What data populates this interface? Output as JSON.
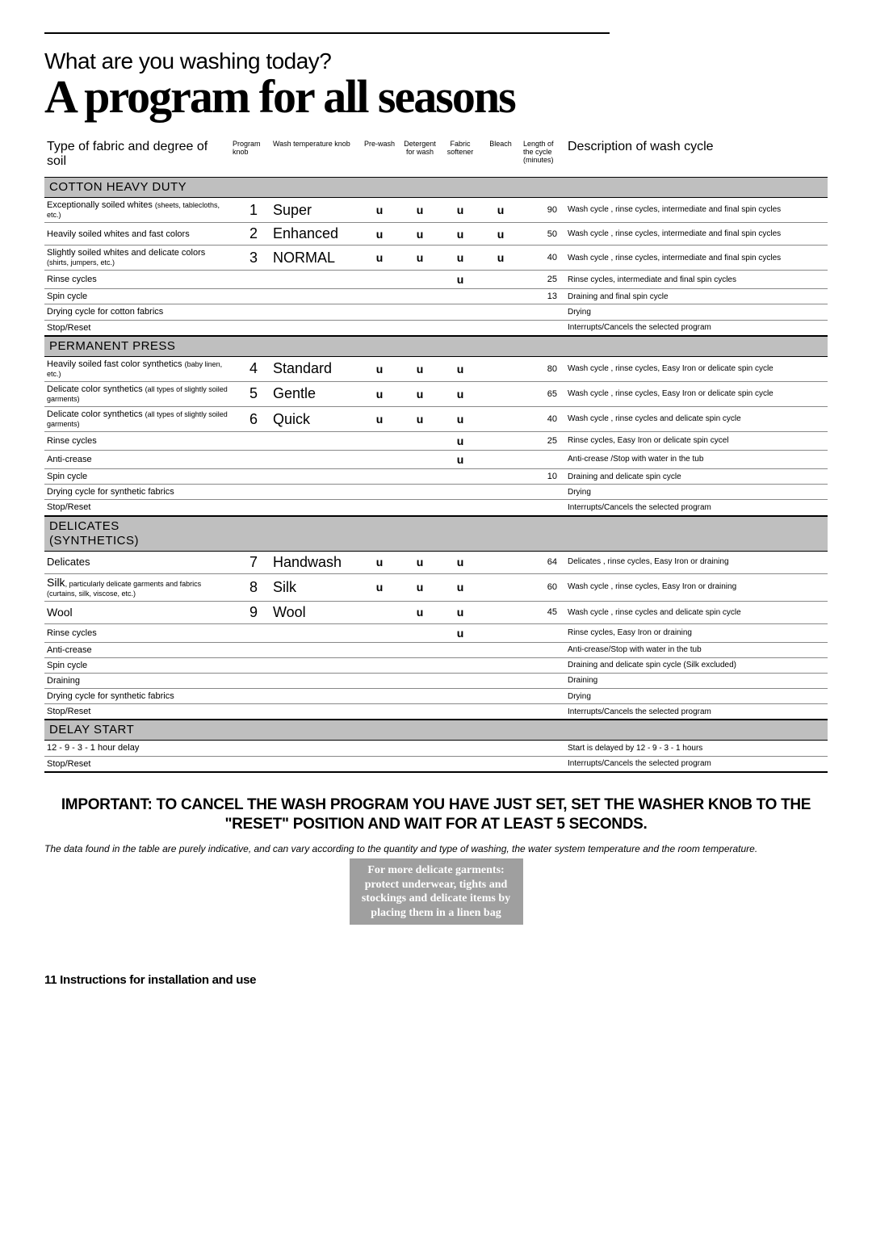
{
  "header": {
    "subtitle": "What are you washing today?",
    "title": "A program for all seasons"
  },
  "table": {
    "columns": {
      "type": "Type of fabric and degree of soil",
      "knob": "Program knob",
      "temp": "Wash temperature knob",
      "prewash": "Pre-wash",
      "detergent": "Detergent for wash",
      "softener": "Fabric softener",
      "bleach": "Bleach",
      "length": "Length of the cycle (minutes)",
      "desc": "Description of wash cycle"
    },
    "tick": "u",
    "sections": [
      {
        "label": "COTTON HEAVY DUTY",
        "rows": [
          {
            "type": "Exceptionally soiled whites",
            "sub": "(sheets, tablecloths, etc.)",
            "knob": "1",
            "temp": "Super",
            "prewash": true,
            "detergent": true,
            "softener": true,
            "bleach": true,
            "length": "90",
            "desc": "Wash cycle , rinse cycles, intermediate and final spin cycles"
          },
          {
            "type": "Heavily soiled whites and fast colors",
            "sub": "",
            "knob": "2",
            "temp": "Enhanced",
            "prewash": true,
            "detergent": true,
            "softener": true,
            "bleach": true,
            "length": "50",
            "desc": "Wash cycle , rinse cycles, intermediate and final spin cycles"
          },
          {
            "type": "Slightly soiled whites and delicate colors",
            "sub": "(shirts, jumpers, etc.)",
            "knob": "3",
            "temp": "NORMAL",
            "prewash": true,
            "detergent": true,
            "softener": true,
            "bleach": true,
            "length": "40",
            "desc": "Wash cycle , rinse cycles, intermediate and final spin cycles"
          },
          {
            "type": "Rinse cycles",
            "sub": "",
            "knob": "",
            "temp": "",
            "prewash": false,
            "detergent": false,
            "softener": true,
            "bleach": false,
            "length": "25",
            "desc": "Rinse cycles, intermediate and final spin cycles"
          },
          {
            "type": "Spin cycle",
            "sub": "",
            "knob": "",
            "temp": "",
            "prewash": false,
            "detergent": false,
            "softener": false,
            "bleach": false,
            "length": "13",
            "desc": "Draining and final spin cycle"
          },
          {
            "type": "Drying cycle for cotton fabrics",
            "sub": "",
            "knob": "",
            "temp": "",
            "prewash": false,
            "detergent": false,
            "softener": false,
            "bleach": false,
            "length": "",
            "desc": "Drying"
          },
          {
            "type": "Stop/Reset",
            "sub": "",
            "knob": "",
            "temp": "",
            "prewash": false,
            "detergent": false,
            "softener": false,
            "bleach": false,
            "length": "",
            "desc": "Interrupts/Cancels the selected program",
            "last": true
          }
        ]
      },
      {
        "label": "PERMANENT PRESS",
        "rows": [
          {
            "type": "Heavily soiled fast color synthetics",
            "sub": "(baby linen, etc.)",
            "knob": "4",
            "temp": "Standard",
            "prewash": true,
            "detergent": true,
            "softener": true,
            "bleach": false,
            "length": "80",
            "desc": "Wash cycle , rinse cycles, Easy Iron or delicate spin cycle"
          },
          {
            "type": "Delicate color synthetics",
            "sub": "(all types of slightly soiled garments)",
            "knob": "5",
            "temp": "Gentle",
            "prewash": true,
            "detergent": true,
            "softener": true,
            "bleach": false,
            "length": "65",
            "desc": "Wash cycle , rinse cycles, Easy Iron or delicate spin cycle"
          },
          {
            "type": "Delicate color synthetics",
            "sub": "(all types of slightly soiled garments)",
            "knob": "6",
            "temp": "Quick",
            "prewash": true,
            "detergent": true,
            "softener": true,
            "bleach": false,
            "length": "40",
            "desc": "Wash cycle , rinse cycles and delicate spin cycle"
          },
          {
            "type": "Rinse cycles",
            "sub": "",
            "knob": "",
            "temp": "",
            "prewash": false,
            "detergent": false,
            "softener": true,
            "bleach": false,
            "length": "25",
            "desc": "Rinse cycles, Easy Iron or delicate spin cycel"
          },
          {
            "type": "Anti-crease",
            "sub": "",
            "knob": "",
            "temp": "",
            "prewash": false,
            "detergent": false,
            "softener": true,
            "bleach": false,
            "length": "",
            "desc": "Anti-crease /Stop with water in the tub"
          },
          {
            "type": "Spin cycle",
            "sub": "",
            "knob": "",
            "temp": "",
            "prewash": false,
            "detergent": false,
            "softener": false,
            "bleach": false,
            "length": "10",
            "desc": "Draining and delicate spin cycle"
          },
          {
            "type": "Drying cycle for synthetic fabrics",
            "sub": "",
            "knob": "",
            "temp": "",
            "prewash": false,
            "detergent": false,
            "softener": false,
            "bleach": false,
            "length": "",
            "desc": "Drying"
          },
          {
            "type": "Stop/Reset",
            "sub": "",
            "knob": "",
            "temp": "",
            "prewash": false,
            "detergent": false,
            "softener": false,
            "bleach": false,
            "length": "",
            "desc": "Interrupts/Cancels the selected program",
            "last": true
          }
        ]
      },
      {
        "label": "DELICATES\n(SYNTHETICS)",
        "rows": [
          {
            "type": "Delicates",
            "sub": "",
            "knob": "7",
            "temp": "Handwash",
            "prewash": true,
            "detergent": true,
            "softener": true,
            "bleach": false,
            "length": "64",
            "desc": "Delicates , rinse cycles, Easy Iron or draining",
            "style_type": "font-size:13px;"
          },
          {
            "type": "Silk",
            "sub": ", particularly delicate garments and fabrics  (curtains, silk, viscose, etc.)",
            "knob": "8",
            "temp": "Silk",
            "prewash": true,
            "detergent": true,
            "softener": true,
            "bleach": false,
            "length": "60",
            "desc": "Wash cycle , rinse cycles, Easy Iron or draining",
            "silk_combo": true
          },
          {
            "type": "Wool",
            "sub": "",
            "knob": "9",
            "temp": "Wool",
            "prewash": false,
            "detergent": true,
            "softener": true,
            "bleach": false,
            "length": "45",
            "desc": "Wash cycle , rinse cycles and delicate spin cycle",
            "style_type": "font-size:14px;"
          },
          {
            "type": "Rinse cycles",
            "sub": "",
            "knob": "",
            "temp": "",
            "prewash": false,
            "detergent": false,
            "softener": true,
            "bleach": false,
            "length": "",
            "desc": "Rinse cycles, Easy Iron or draining"
          },
          {
            "type": "Anti-crease",
            "sub": "",
            "knob": "",
            "temp": "",
            "prewash": false,
            "detergent": false,
            "softener": false,
            "bleach": false,
            "length": "",
            "desc": "Anti-crease/Stop with water in the tub"
          },
          {
            "type": "Spin cycle",
            "sub": "",
            "knob": "",
            "temp": "",
            "prewash": false,
            "detergent": false,
            "softener": false,
            "bleach": false,
            "length": "",
            "desc": "Draining and delicate spin cycle (Silk excluded)"
          },
          {
            "type": "Draining",
            "sub": "",
            "knob": "",
            "temp": "",
            "prewash": false,
            "detergent": false,
            "softener": false,
            "bleach": false,
            "length": "",
            "desc": "Draining"
          },
          {
            "type": "Drying cycle for synthetic fabrics",
            "sub": "",
            "knob": "",
            "temp": "",
            "prewash": false,
            "detergent": false,
            "softener": false,
            "bleach": false,
            "length": "",
            "desc": "Drying"
          },
          {
            "type": "Stop/Reset",
            "sub": "",
            "knob": "",
            "temp": "",
            "prewash": false,
            "detergent": false,
            "softener": false,
            "bleach": false,
            "length": "",
            "desc": "Interrupts/Cancels the selected program",
            "last": true
          }
        ]
      },
      {
        "label": "DELAY START",
        "rows": [
          {
            "type": "12 - 9 - 3 - 1  hour delay",
            "sub": "",
            "knob": "",
            "temp": "",
            "prewash": false,
            "detergent": false,
            "softener": false,
            "bleach": false,
            "length": "",
            "desc": "Start is delayed by 12 - 9 - 3 - 1  hours"
          },
          {
            "type": "Stop/Reset",
            "sub": "",
            "knob": "",
            "temp": "",
            "prewash": false,
            "detergent": false,
            "softener": false,
            "bleach": false,
            "length": "",
            "desc": "Interrupts/Cancels the selected program",
            "last": true
          }
        ]
      }
    ]
  },
  "important": "IMPORTANT: TO CANCEL THE WASH PROGRAM YOU HAVE JUST SET, SET THE WASHER KNOB TO THE \"RESET\" POSITION AND WAIT FOR AT LEAST 5 SECONDS.",
  "disclaimer": "The data found in the table are purely indicative, and can vary according to the quantity and type of washing, the water system temperature and the room temperature.",
  "tip": "For more delicate garments:\nprotect underwear, tights and stockings and delicate items by placing them in a linen bag",
  "footer": "11 Instructions for installation and use"
}
